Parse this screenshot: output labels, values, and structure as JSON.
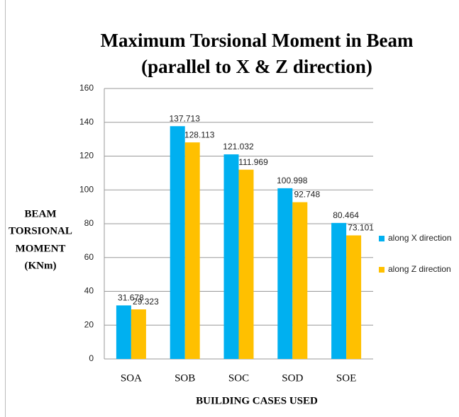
{
  "chart_data": {
    "type": "bar",
    "title": [
      "Maximum Torsional Moment in Beam",
      "(parallel to X & Z direction)"
    ],
    "ylabel": [
      "BEAM",
      "TORSIONAL",
      "MOMENT",
      "(KNm)"
    ],
    "xlabel": "BUILDING CASES USED",
    "categories": [
      "SOA",
      "SOB",
      "SOC",
      "SOD",
      "SOE"
    ],
    "series": [
      {
        "name": "along X direction",
        "color": "#00b0f0",
        "values": [
          31.678,
          137.713,
          121.032,
          100.998,
          80.464
        ]
      },
      {
        "name": "along Z direction",
        "color": "#ffc000",
        "values": [
          29.323,
          128.113,
          111.969,
          92.748,
          73.101
        ]
      }
    ],
    "ylim": [
      0,
      160
    ],
    "yticks": [
      0,
      20,
      40,
      60,
      80,
      100,
      120,
      140,
      160
    ],
    "grid": true,
    "legend": "right"
  }
}
